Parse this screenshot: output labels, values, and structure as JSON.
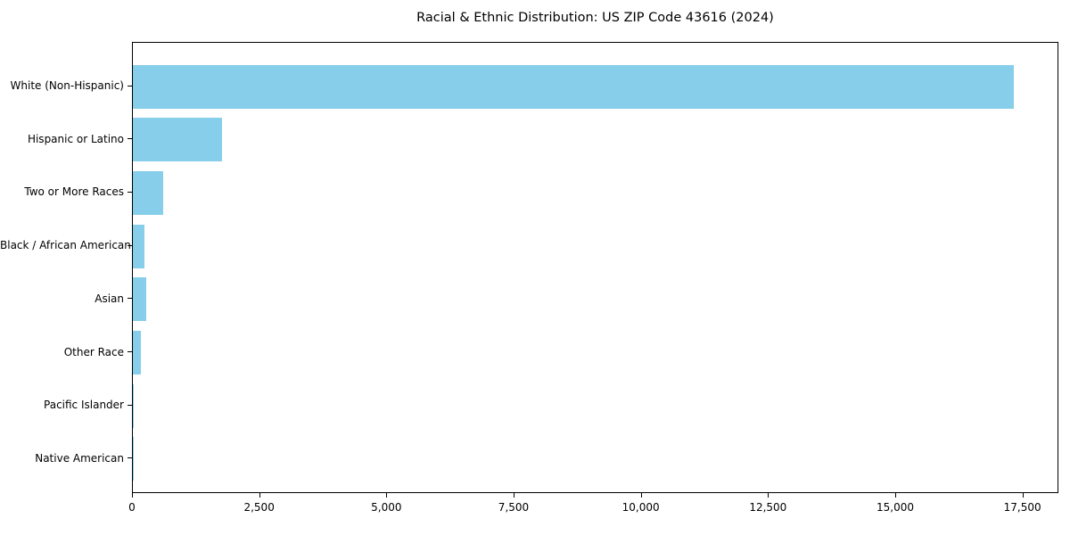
{
  "figure": {
    "background": "#ffffff"
  },
  "chart_data": {
    "type": "bar",
    "orientation": "horizontal",
    "title": "Racial & Ethnic Distribution: US ZIP Code 43616 (2024)",
    "categories": [
      "White (Non-Hispanic)",
      "Hispanic or Latino",
      "Two or More Races",
      "Black / African American",
      "Asian",
      "Other Race",
      "Pacific Islander",
      "Native American"
    ],
    "values": [
      17340,
      1755,
      600,
      235,
      270,
      150,
      10,
      5
    ],
    "bar_color": "#87CEEB",
    "axis_color": "#000000",
    "text_color": "#000000",
    "xlabel": "",
    "ylabel": "",
    "xlim": [
      0,
      18207
    ],
    "x_ticks": {
      "values": [
        0,
        2500,
        5000,
        7500,
        10000,
        12500,
        15000,
        17500
      ],
      "labels": [
        "0",
        "2,500",
        "5,000",
        "7,500",
        "10,000",
        "12,500",
        "15,000",
        "17,500"
      ]
    },
    "grid": false,
    "legend": null
  }
}
